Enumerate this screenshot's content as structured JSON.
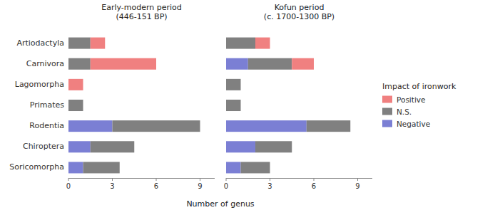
{
  "chart_data": [
    {
      "type": "bar",
      "orientation": "horizontal",
      "stacked": true,
      "title": "Early-modern period\n(446-151 BP)",
      "categories": [
        "Soricomorpha",
        "Chiroptera",
        "Rodentia",
        "Primates",
        "Lagomorpha",
        "Carnivora",
        "Artiodactyla"
      ],
      "series": [
        {
          "name": "Negative",
          "color": "#7B7FD4",
          "values": [
            1,
            1.5,
            3,
            0,
            0,
            0,
            0
          ]
        },
        {
          "name": "N.S.",
          "color": "#808080",
          "values": [
            2.5,
            3,
            6,
            1,
            0,
            1.5,
            1.5
          ]
        },
        {
          "name": "Positive",
          "color": "#F08080",
          "values": [
            0,
            0,
            0,
            0,
            1,
            4.5,
            1
          ]
        }
      ],
      "xlim": [
        0,
        10
      ],
      "xticks": [
        0,
        3,
        6,
        9
      ],
      "grid": false,
      "xlabel": "Number of genus"
    },
    {
      "type": "bar",
      "orientation": "horizontal",
      "stacked": true,
      "title": "Kofun period\n(c. 1700-1300 BP)",
      "categories": [
        "Soricomorpha",
        "Chiroptera",
        "Rodentia",
        "Primates",
        "Lagomorpha",
        "Carnivora",
        "Artiodactyla"
      ],
      "series": [
        {
          "name": "Negative",
          "color": "#7B7FD4",
          "values": [
            1,
            2,
            5.5,
            0,
            0,
            1.5,
            0
          ]
        },
        {
          "name": "N.S.",
          "color": "#808080",
          "values": [
            2,
            2.5,
            3,
            1,
            1,
            3,
            2
          ]
        },
        {
          "name": "Positive",
          "color": "#F08080",
          "values": [
            0,
            0,
            0,
            0,
            0,
            1.5,
            1
          ]
        }
      ],
      "xlim": [
        0,
        10
      ],
      "xticks": [
        0,
        3,
        6,
        9
      ],
      "grid": false,
      "tick_labels": "x",
      "legend": "right",
      "legend_title": "Impact of ironwork"
    }
  ]
}
